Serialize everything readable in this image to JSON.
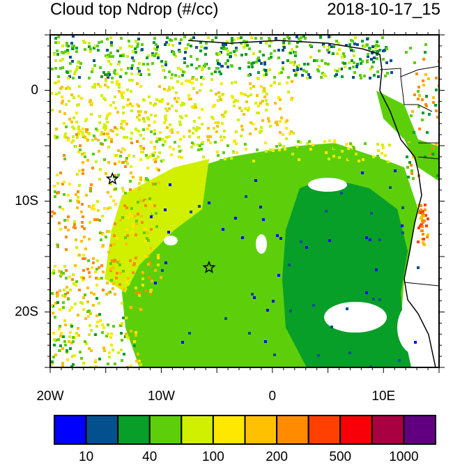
{
  "title": {
    "left": "Cloud top Ndrop (#/cc)",
    "right": "2018-10-17_15"
  },
  "map": {
    "lon_range": [
      -20,
      15
    ],
    "lat_range": [
      -25,
      5
    ],
    "x_ticks": [
      {
        "lon": -20,
        "label": "20W"
      },
      {
        "lon": -10,
        "label": "10W"
      },
      {
        "lon": 0,
        "label": "0"
      },
      {
        "lon": 10,
        "label": "10E"
      }
    ],
    "y_ticks": [
      {
        "lat": 0,
        "label": "0"
      },
      {
        "lat": -10,
        "label": "10S"
      },
      {
        "lat": -20,
        "label": "20S"
      }
    ],
    "markers": [
      {
        "name": "star",
        "lon": -14.4,
        "lat": -8.0
      },
      {
        "name": "star",
        "lon": -5.7,
        "lat": -16.0
      }
    ]
  },
  "colorbar": {
    "colors": [
      "#0000ff",
      "#04508f",
      "#089f28",
      "#5ccf0a",
      "#d0f000",
      "#ffe800",
      "#ffc000",
      "#ff8c00",
      "#ff4000",
      "#f80008",
      "#a80040",
      "#600080"
    ],
    "labels": [
      {
        "after_box": 1,
        "text": "10"
      },
      {
        "after_box": 3,
        "text": "40"
      },
      {
        "after_box": 5,
        "text": "100"
      },
      {
        "after_box": 7,
        "text": "200"
      },
      {
        "after_box": 9,
        "text": "500"
      },
      {
        "after_box": 11,
        "text": "1000"
      }
    ]
  }
}
